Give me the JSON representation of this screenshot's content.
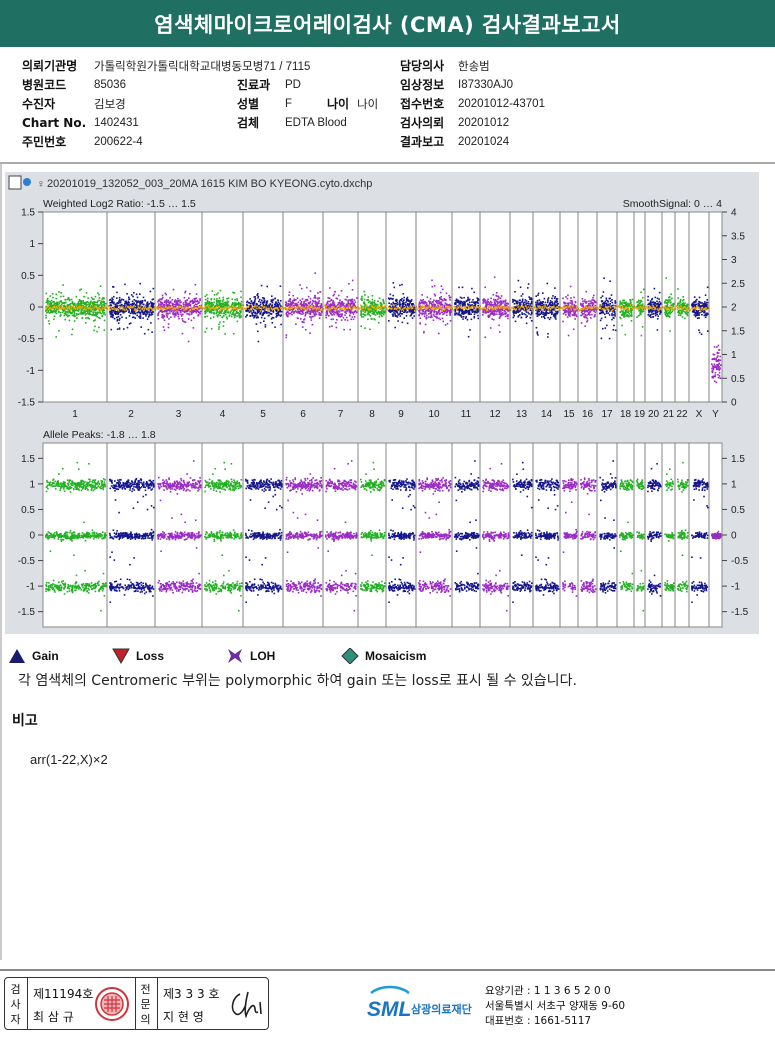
{
  "title": "염색체마이크로어레이검사 (CMA) 검사결과보고서",
  "header": {
    "col1": [
      {
        "label": "의뢰기관명",
        "value": "가톨릭학원가톨릭대학교대병동모병71 / 7115"
      },
      {
        "label": "병원코드",
        "value": "85036"
      },
      {
        "label": "수진자",
        "value": "김보경"
      },
      {
        "label": "Chart No.",
        "value": "1402431"
      },
      {
        "label": "주민번호",
        "value": "200622-4"
      }
    ],
    "col2": [
      {
        "label": "진료과",
        "value": "PD"
      },
      {
        "label": "성별",
        "value": "F",
        "label2": "나이",
        "value2": "나이"
      },
      {
        "label": "검체",
        "value": "EDTA Blood"
      }
    ],
    "col3": [
      {
        "label": "담당의사",
        "value": "한송범"
      },
      {
        "label": "임상정보",
        "value": "I87330AJ0"
      },
      {
        "label": "접수번호",
        "value": "20201012-43701"
      },
      {
        "label": "검사의뢰",
        "value": "20201012"
      },
      {
        "label": "결과보고",
        "value": "20201024"
      }
    ]
  },
  "chart_data": {
    "type": "scatter",
    "file_name": "20201019_132052_003_20MA 1615 KIM BO KYEONG.cyto.dxchp",
    "chromosomes": [
      "1",
      "2",
      "3",
      "4",
      "5",
      "6",
      "7",
      "8",
      "9",
      "10",
      "11",
      "12",
      "13",
      "14",
      "15",
      "16",
      "17",
      "18",
      "19",
      "20",
      "21",
      "22",
      "X",
      "Y"
    ],
    "panels": [
      {
        "label": "Weighted Log2 Ratio: -1.5 … 1.5",
        "right_label": "SmoothSignal: 0 … 4",
        "ylim": [
          -1.5,
          1.5
        ],
        "left_ticks": [
          "1.5",
          "1",
          "0.5",
          "0",
          "-0.5",
          "-1",
          "-1.5"
        ],
        "right_ticks": [
          "4",
          "3.5",
          "3",
          "2.5",
          "2",
          "1.5",
          "1",
          "0.5",
          "0"
        ],
        "right_ylim": [
          0,
          4
        ],
        "baseline_log2": 0,
        "smooth_signal_baseline": 2
      },
      {
        "label": "Allele Peaks: -1.8 … 1.8",
        "ylim": [
          -1.8,
          1.8
        ],
        "left_ticks": [
          "1.5",
          "1",
          "0.5",
          "0",
          "-0.5",
          "-1",
          "-1.5"
        ],
        "right_ticks": [
          "1.5",
          "1",
          "0.5",
          "0",
          "-0.5",
          "-1",
          "-1.5"
        ],
        "bands": [
          1,
          0,
          -1
        ]
      }
    ],
    "colors": {
      "green": "#22b022",
      "navy": "#15158c",
      "purple": "#9a2bc4",
      "orange": "#f2a900"
    }
  },
  "legend": [
    {
      "label": "Gain",
      "icon": "gain-triangle-up-icon",
      "color": "#1a1a6e"
    },
    {
      "label": "Loss",
      "icon": "loss-triangle-down-icon",
      "color": "#c0202a"
    },
    {
      "label": "LOH",
      "icon": "loh-x-icon",
      "color": "#6a2ca0"
    },
    {
      "label": "Mosaicism",
      "icon": "mosaicism-diamond-icon",
      "color": "#2f8f7f"
    }
  ],
  "note": "각 염색체의 Centromeric 부위는 polymorphic 하여 gain 또는 loss로 표시 될 수 있습니다.",
  "remarks": {
    "heading": "비고",
    "value": "arr(1-22,X)×2"
  },
  "signatures": {
    "box1_label": [
      "검",
      "사",
      "자"
    ],
    "box1_line1": "제11194호",
    "box1_line2": "최 삼 규",
    "box2_label": [
      "전",
      "문",
      "의"
    ],
    "box2_line1": "제3 3 3 호",
    "box2_line2": "지 현 영"
  },
  "org": {
    "logo_text": "SML",
    "name": "삼광의료재단",
    "line1": "요양기관 : 1 1 3 6 5 2 0 0",
    "line2": "서울특별시 서초구 양재동 9-60",
    "line3": "대표번호 : 1661-5117"
  }
}
